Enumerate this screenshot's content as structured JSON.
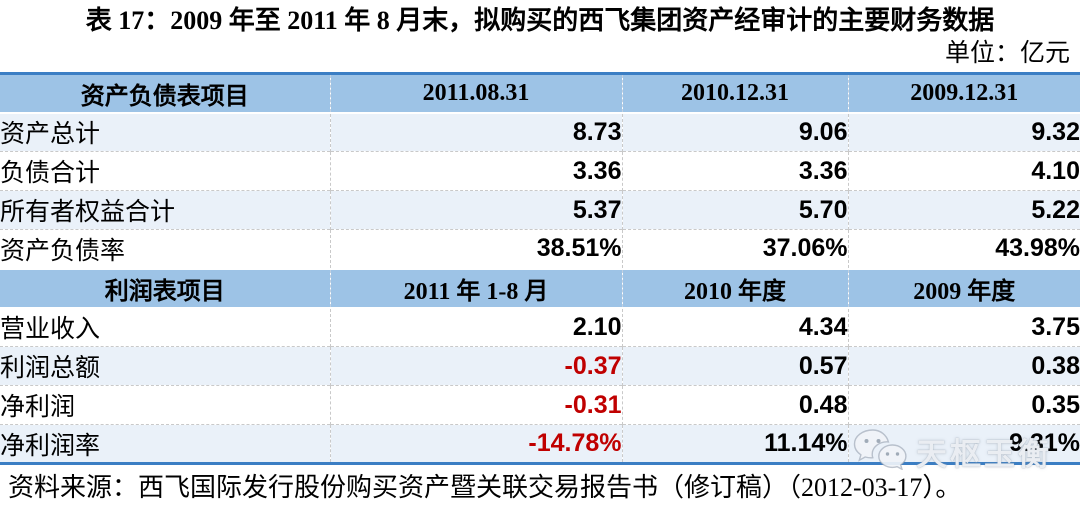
{
  "title": "表 17：2009 年至 2011 年 8 月末，拟购买的西飞集团资产经审计的主要财务数据",
  "unit_label": "单位：亿元",
  "source_note": "资料来源：西飞国际发行股份购买资产暨关联交易报告书（修订稿）（2012-03-17）。",
  "watermark": {
    "icon": "wechat-icon",
    "text": "天枢玉衡"
  },
  "colors": {
    "header_bg": "#9dc3e6",
    "band_bg": "#eaf1f9",
    "border_blue": "#3b7ec4",
    "negative": "#c00000"
  },
  "chart_data": {
    "type": "table",
    "title": "表 17：2009 年至 2011 年 8 月末，拟购买的西飞集团资产经审计的主要财务数据",
    "unit": "亿元",
    "sections": [
      {
        "header": [
          "资产负债表项目",
          "2011.08.31",
          "2010.12.31",
          "2009.12.31"
        ],
        "rows": [
          [
            "资产总计",
            "8.73",
            "9.06",
            "9.32"
          ],
          [
            "负债合计",
            "3.36",
            "3.36",
            "4.10"
          ],
          [
            "所有者权益合计",
            "5.37",
            "5.70",
            "5.22"
          ],
          [
            "资产负债率",
            "38.51%",
            "37.06%",
            "43.98%"
          ]
        ]
      },
      {
        "header": [
          "利润表项目",
          "2011 年 1-8 月",
          "2010 年度",
          "2009 年度"
        ],
        "rows": [
          [
            "营业收入",
            "2.10",
            "4.34",
            "3.75"
          ],
          [
            "利润总额",
            "-0.37",
            "0.57",
            "0.38"
          ],
          [
            "净利润",
            "-0.31",
            "0.48",
            "0.35"
          ],
          [
            "净利润率",
            "-14.78%",
            "11.14%",
            "9.31%"
          ]
        ]
      }
    ]
  }
}
